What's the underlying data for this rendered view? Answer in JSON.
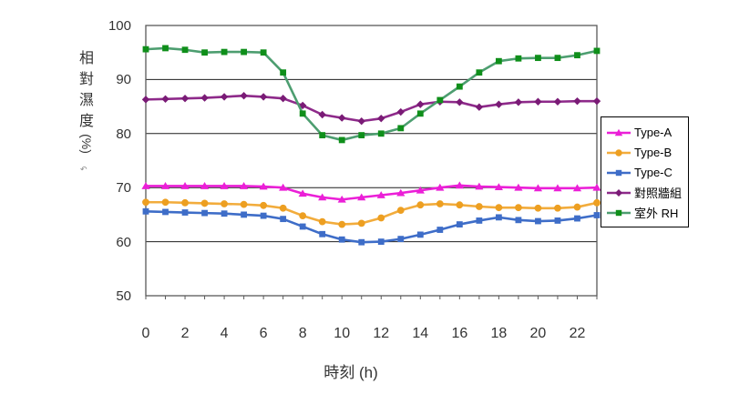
{
  "chart_data": {
    "type": "line",
    "title": "",
    "xlabel": "時刻 (h)",
    "ylabel": "相對濕度 (%)",
    "ylabel_chars": [
      "相",
      "對",
      "濕",
      "度"
    ],
    "ylabel_unit": "(%)",
    "ylabel_note": "↶",
    "xlim": [
      0,
      23
    ],
    "ylim": [
      50,
      100
    ],
    "x": [
      0,
      1,
      2,
      3,
      4,
      5,
      6,
      7,
      8,
      9,
      10,
      11,
      12,
      13,
      14,
      15,
      16,
      17,
      18,
      19,
      20,
      21,
      22,
      23
    ],
    "x_tick_labels": [
      "0",
      "2",
      "4",
      "6",
      "8",
      "10",
      "12",
      "14",
      "16",
      "18",
      "20",
      "22"
    ],
    "x_tick_values": [
      0,
      2,
      4,
      6,
      8,
      10,
      12,
      14,
      16,
      18,
      20,
      22
    ],
    "y_tick_labels": [
      "50",
      "60",
      "70",
      "80",
      "90",
      "100"
    ],
    "y_tick_values": [
      50,
      60,
      70,
      80,
      90,
      100
    ],
    "grid": "horizontal-black-lines",
    "legend_position": "right",
    "plot_border_color": "#595959",
    "gridline_color": "#1f1f1f",
    "series": [
      {
        "name": "Type-A",
        "marker": "triangle",
        "color": "#eb1fd7",
        "marker_color": "#eb1fd7",
        "values": [
          70.3,
          70.3,
          70.3,
          70.3,
          70.3,
          70.3,
          70.2,
          70.0,
          68.9,
          68.2,
          67.8,
          68.2,
          68.6,
          69.0,
          69.5,
          70.0,
          70.4,
          70.2,
          70.1,
          70.0,
          69.9,
          69.9,
          69.9,
          70.0
        ]
      },
      {
        "name": "Type-B",
        "marker": "circle",
        "color": "#f2ac3c",
        "marker_color": "#ed9f21",
        "values": [
          67.3,
          67.3,
          67.2,
          67.1,
          67.0,
          66.9,
          66.7,
          66.2,
          64.8,
          63.7,
          63.2,
          63.4,
          64.4,
          65.8,
          66.8,
          67.0,
          66.8,
          66.5,
          66.3,
          66.3,
          66.2,
          66.2,
          66.4,
          67.2
        ]
      },
      {
        "name": "Type-C",
        "marker": "square",
        "color": "#3e6dc8",
        "marker_color": "#3e6dc8",
        "values": [
          65.6,
          65.5,
          65.4,
          65.3,
          65.2,
          65.0,
          64.8,
          64.2,
          62.8,
          61.4,
          60.4,
          59.9,
          60.0,
          60.5,
          61.3,
          62.2,
          63.2,
          63.9,
          64.5,
          64.0,
          63.8,
          63.9,
          64.3,
          64.9
        ]
      },
      {
        "name": "對照牆組",
        "marker": "diamond",
        "color": "#8e2a8a",
        "marker_color": "#7a1b76",
        "values": [
          86.3,
          86.4,
          86.5,
          86.6,
          86.8,
          87.0,
          86.8,
          86.5,
          85.2,
          83.5,
          82.9,
          82.3,
          82.8,
          84.0,
          85.4,
          85.9,
          85.8,
          84.9,
          85.4,
          85.8,
          85.9,
          85.9,
          86.0,
          86.0
        ]
      },
      {
        "name": "室外 RH",
        "marker": "square",
        "color": "#4d9e70",
        "marker_color": "#0f8f1a",
        "values": [
          95.6,
          95.8,
          95.5,
          95.0,
          95.1,
          95.1,
          95.0,
          91.3,
          83.7,
          79.7,
          78.8,
          79.7,
          80.0,
          81.0,
          83.7,
          86.2,
          88.7,
          91.3,
          93.4,
          93.9,
          94.0,
          94.0,
          94.5,
          95.3
        ]
      }
    ]
  }
}
